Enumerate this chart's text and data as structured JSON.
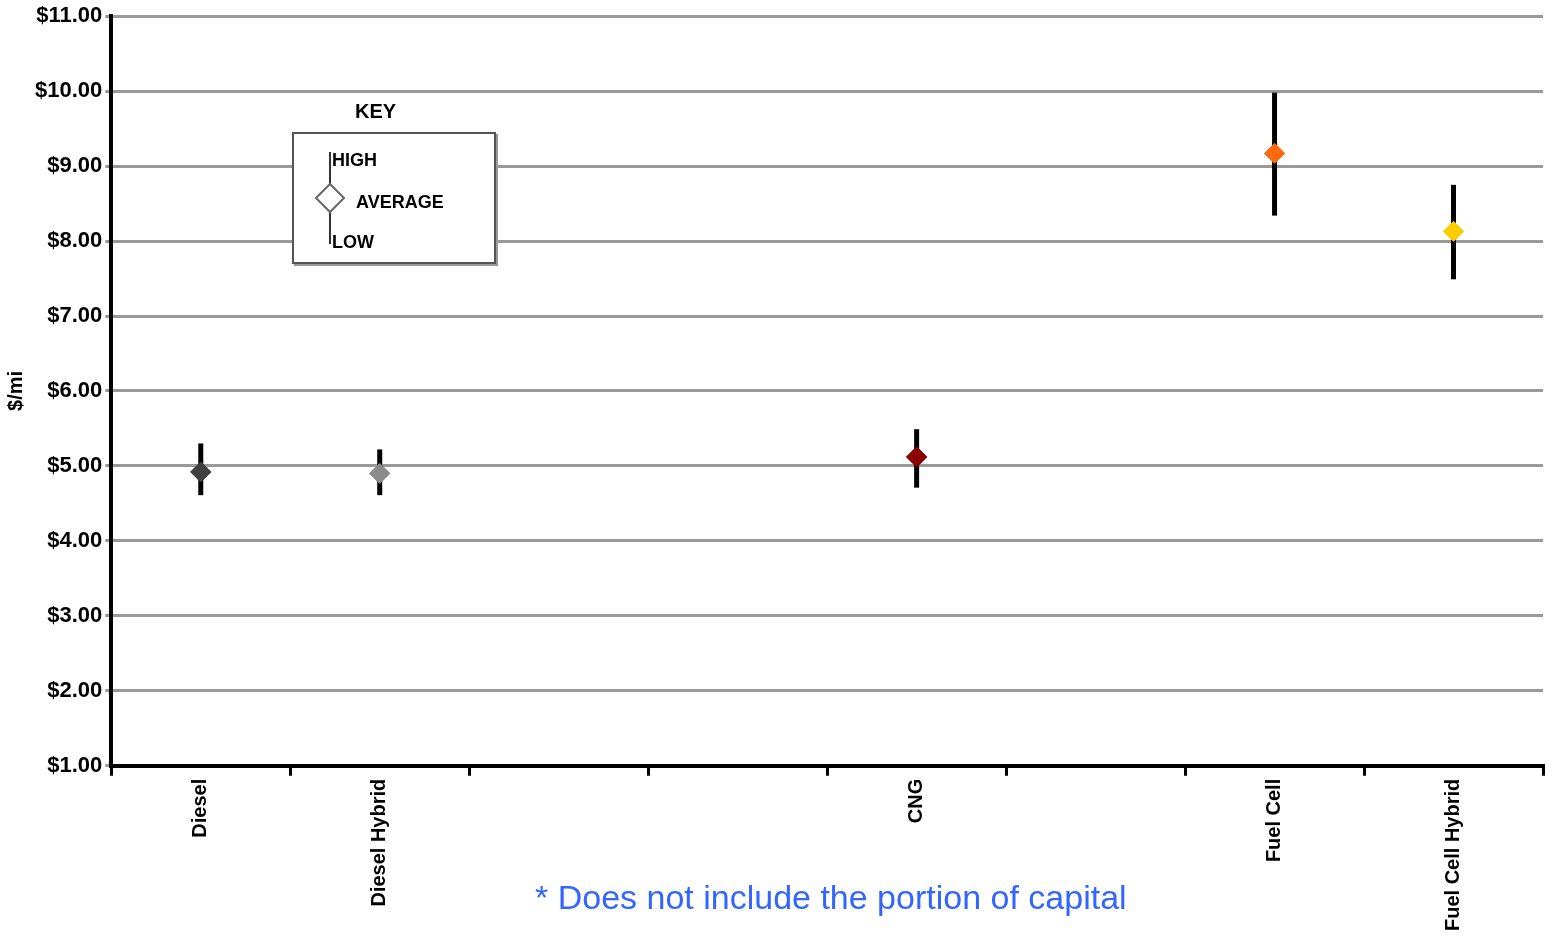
{
  "chart_data": {
    "type": "scatter",
    "categories": [
      "Diesel",
      "Diesel Hybrid",
      null,
      null,
      "CNG",
      null,
      "Fuel Cell",
      "Fuel Cell Hybrid"
    ],
    "values": [
      4.92,
      4.9,
      null,
      null,
      5.12,
      null,
      9.17,
      8.13
    ],
    "errors": [
      [
        4.61,
        5.3
      ],
      [
        4.61,
        5.22
      ],
      null,
      null,
      [
        4.71,
        5.49
      ],
      null,
      [
        8.34,
        9.98
      ],
      [
        7.49,
        8.75
      ]
    ],
    "colors": [
      "#404040",
      "#8c8c8c",
      null,
      null,
      "#8b0000",
      null,
      "#ff6a10",
      "#ffcc00"
    ],
    "ylabel": "$/mi",
    "ylim": [
      1,
      11
    ],
    "yticks": [
      {
        "value": 1,
        "label": "$1.00"
      },
      {
        "value": 2,
        "label": "$2.00"
      },
      {
        "value": 3,
        "label": "$3.00"
      },
      {
        "value": 4,
        "label": "$4.00"
      },
      {
        "value": 5,
        "label": "$5.00"
      },
      {
        "value": 6,
        "label": "$6.00"
      },
      {
        "value": 7,
        "label": "$7.00"
      },
      {
        "value": 8,
        "label": "$8.00"
      },
      {
        "value": 9,
        "label": "$9.00"
      },
      {
        "value": 10,
        "label": "$10.00"
      },
      {
        "value": 11,
        "label": "$11.00"
      }
    ],
    "grid": "y",
    "marker": "diamond",
    "annotations": [
      "KEY",
      "HIGH",
      "AVERAGE",
      "LOW",
      "* Does not include the portion of capital"
    ]
  }
}
